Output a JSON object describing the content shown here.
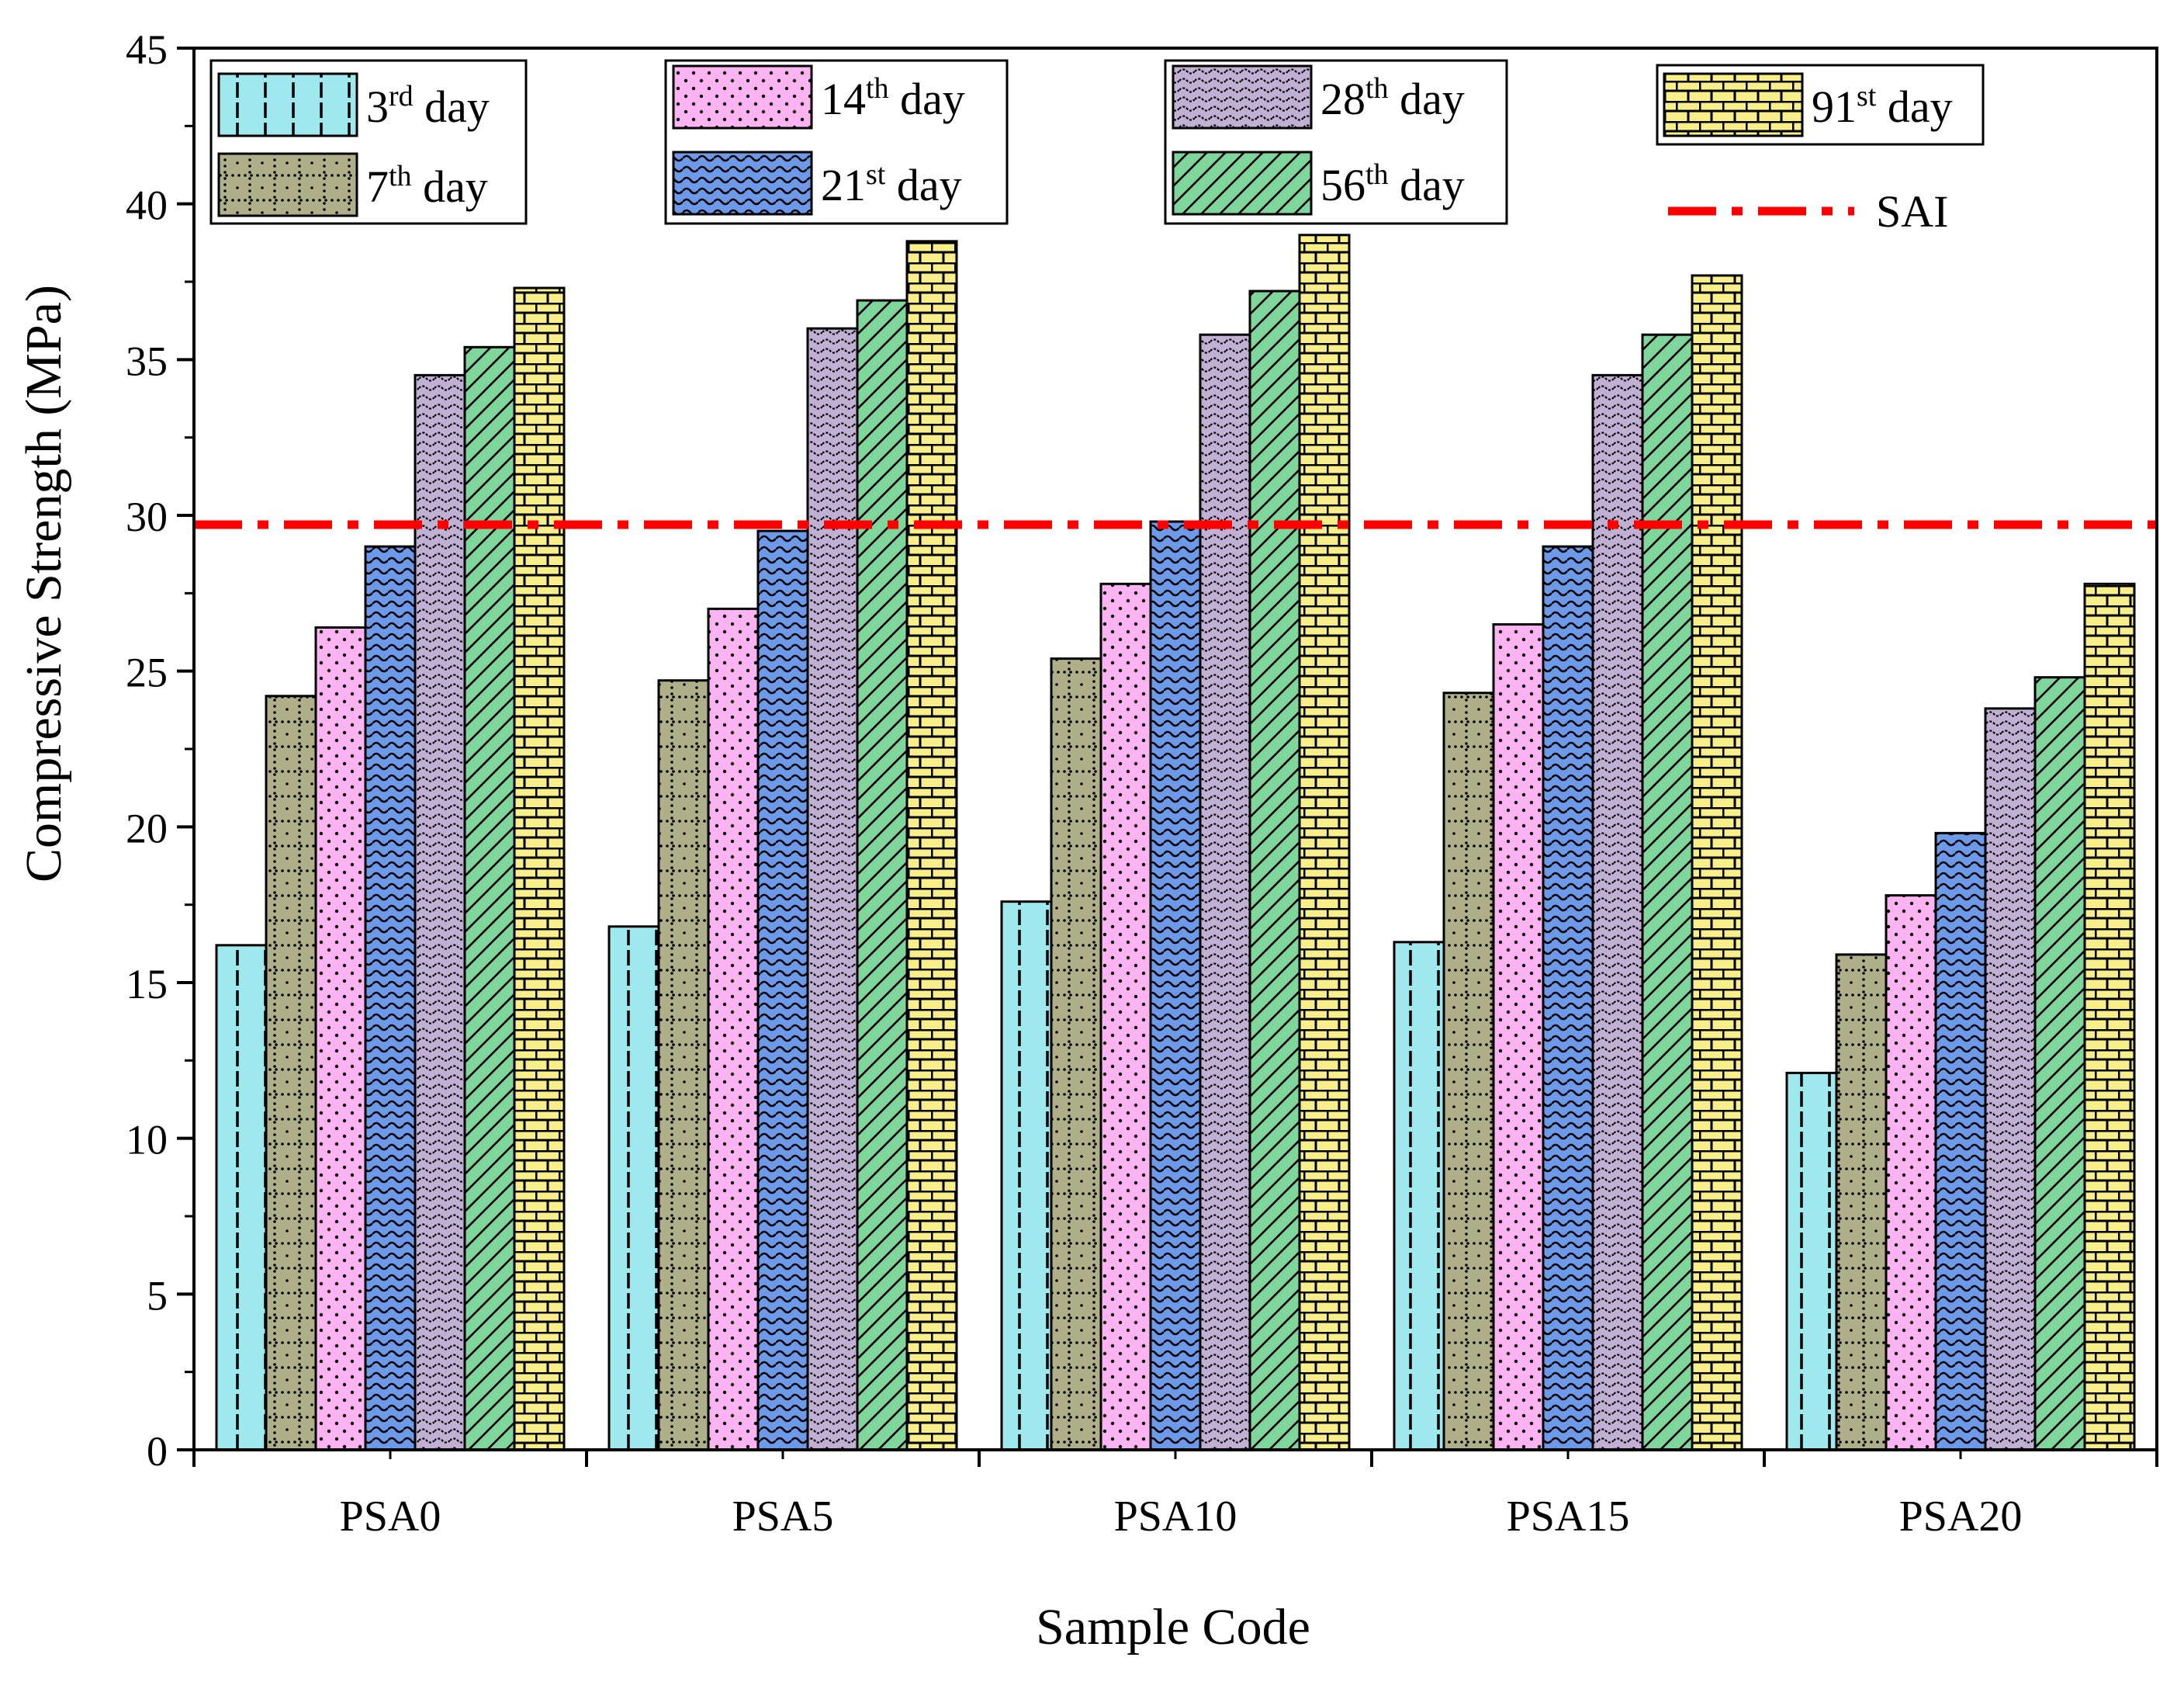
{
  "chart_data": {
    "type": "bar",
    "xlabel": "Sample Code",
    "ylabel": "Compressive Strength (MPa)",
    "ylim": [
      0,
      45
    ],
    "yticks": [
      0,
      5,
      10,
      15,
      20,
      25,
      30,
      35,
      40,
      45
    ],
    "categories": [
      "PSA0",
      "PSA5",
      "PSA10",
      "PSA15",
      "PSA20"
    ],
    "series": [
      {
        "name": "3rd day",
        "num": "3",
        "sup": "rd",
        "suffix": " day",
        "color": "#9FE8EE",
        "pattern": "dash",
        "values": [
          16.2,
          16.8,
          17.6,
          16.3,
          12.1
        ]
      },
      {
        "name": "7th day",
        "num": "7",
        "sup": "th",
        "suffix": " day",
        "color": "#AFAF8A",
        "pattern": "dotgrid",
        "values": [
          24.2,
          24.7,
          25.4,
          24.3,
          15.9
        ]
      },
      {
        "name": "14th day",
        "num": "14",
        "sup": "th",
        "suffix": " day",
        "color": "#FBB4F1",
        "pattern": "dots",
        "values": [
          26.4,
          27.0,
          27.8,
          26.5,
          17.8
        ]
      },
      {
        "name": "21st day",
        "num": "21",
        "sup": "st",
        "suffix": " day",
        "color": "#6D9AE8",
        "pattern": "wave",
        "values": [
          29.0,
          29.5,
          29.8,
          29.0,
          19.8
        ]
      },
      {
        "name": "28th day",
        "num": "28",
        "sup": "th",
        "suffix": " day",
        "color": "#C2B0D4",
        "pattern": "smallwave",
        "values": [
          34.5,
          36.0,
          35.8,
          34.5,
          23.8
        ]
      },
      {
        "name": "56th day",
        "num": "56",
        "sup": "th",
        "suffix": " day",
        "color": "#7FD69B",
        "pattern": "diag",
        "values": [
          35.4,
          36.9,
          37.2,
          35.8,
          24.8
        ]
      },
      {
        "name": "91st day",
        "num": "91",
        "sup": "st",
        "suffix": " day",
        "color": "#F9EF8A",
        "pattern": "brick",
        "values": [
          37.3,
          38.8,
          39.0,
          37.7,
          27.8
        ]
      }
    ],
    "reference_line": {
      "name": "SAI",
      "value": 29.7,
      "color": "#FF0000",
      "style": "dash-dot"
    },
    "legend_position": "top",
    "grid": false
  }
}
